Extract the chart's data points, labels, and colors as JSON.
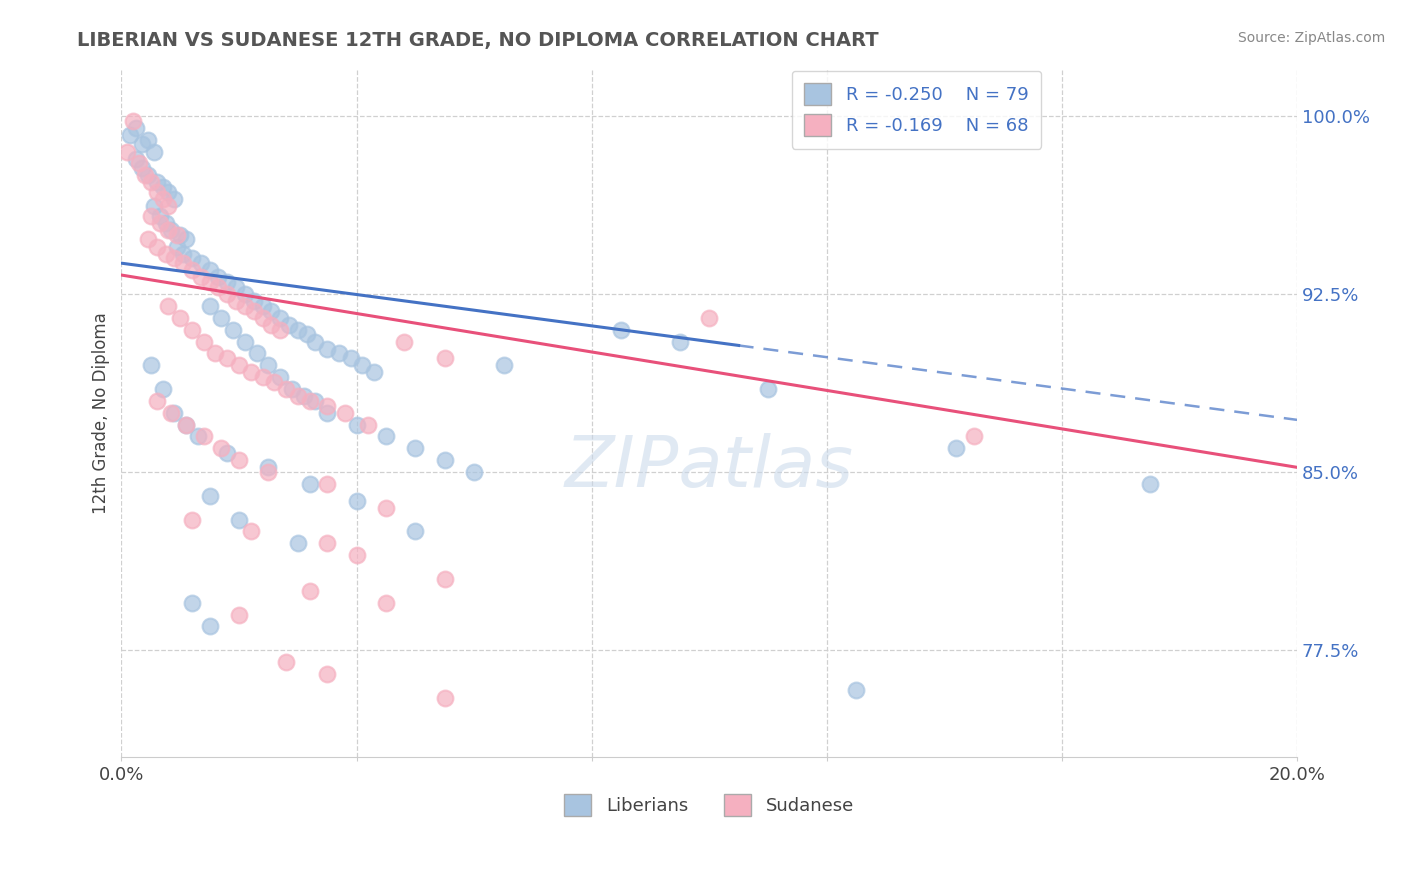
{
  "title": "LIBERIAN VS SUDANESE 12TH GRADE, NO DIPLOMA CORRELATION CHART",
  "source": "Source: ZipAtlas.com",
  "ylabel": "12th Grade, No Diploma",
  "xlim": [
    0.0,
    20.0
  ],
  "ylim": [
    73.0,
    102.0
  ],
  "yticks": [
    77.5,
    85.0,
    92.5,
    100.0
  ],
  "ytick_labels": [
    "77.5%",
    "85.0%",
    "92.5%",
    "100.0%"
  ],
  "xticks": [
    0.0,
    4.0,
    8.0,
    12.0,
    16.0,
    20.0
  ],
  "xtick_labels": [
    "0.0%",
    "",
    "",
    "",
    "",
    "20.0%"
  ],
  "liberian_color": "#a8c4e0",
  "sudanese_color": "#f5b0c0",
  "trend_blue": "#4472c4",
  "trend_pink": "#e8507a",
  "R_liberian": -0.25,
  "N_liberian": 79,
  "R_sudanese": -0.169,
  "N_sudanese": 68,
  "watermark": "ZIPatlas",
  "lib_trend": [
    0.0,
    20.0,
    93.8,
    87.2
  ],
  "sud_trend": [
    0.0,
    20.0,
    93.3,
    85.2
  ],
  "lib_solid_end": 10.5,
  "liberian_scatter": [
    [
      0.15,
      99.2
    ],
    [
      0.25,
      99.5
    ],
    [
      0.35,
      98.8
    ],
    [
      0.45,
      99.0
    ],
    [
      0.55,
      98.5
    ],
    [
      0.25,
      98.2
    ],
    [
      0.35,
      97.8
    ],
    [
      0.45,
      97.5
    ],
    [
      0.6,
      97.2
    ],
    [
      0.7,
      97.0
    ],
    [
      0.8,
      96.8
    ],
    [
      0.9,
      96.5
    ],
    [
      0.55,
      96.2
    ],
    [
      0.65,
      95.8
    ],
    [
      0.75,
      95.5
    ],
    [
      0.85,
      95.2
    ],
    [
      1.0,
      95.0
    ],
    [
      1.1,
      94.8
    ],
    [
      0.95,
      94.5
    ],
    [
      1.05,
      94.2
    ],
    [
      1.2,
      94.0
    ],
    [
      1.35,
      93.8
    ],
    [
      1.5,
      93.5
    ],
    [
      1.65,
      93.2
    ],
    [
      1.8,
      93.0
    ],
    [
      1.95,
      92.8
    ],
    [
      2.1,
      92.5
    ],
    [
      2.25,
      92.2
    ],
    [
      2.4,
      92.0
    ],
    [
      2.55,
      91.8
    ],
    [
      2.7,
      91.5
    ],
    [
      2.85,
      91.2
    ],
    [
      3.0,
      91.0
    ],
    [
      3.15,
      90.8
    ],
    [
      3.3,
      90.5
    ],
    [
      3.5,
      90.2
    ],
    [
      3.7,
      90.0
    ],
    [
      3.9,
      89.8
    ],
    [
      4.1,
      89.5
    ],
    [
      4.3,
      89.2
    ],
    [
      1.5,
      92.0
    ],
    [
      1.7,
      91.5
    ],
    [
      1.9,
      91.0
    ],
    [
      2.1,
      90.5
    ],
    [
      2.3,
      90.0
    ],
    [
      2.5,
      89.5
    ],
    [
      2.7,
      89.0
    ],
    [
      2.9,
      88.5
    ],
    [
      3.1,
      88.2
    ],
    [
      3.3,
      88.0
    ],
    [
      3.5,
      87.5
    ],
    [
      4.0,
      87.0
    ],
    [
      4.5,
      86.5
    ],
    [
      5.0,
      86.0
    ],
    [
      5.5,
      85.5
    ],
    [
      6.0,
      85.0
    ],
    [
      0.5,
      89.5
    ],
    [
      0.7,
      88.5
    ],
    [
      0.9,
      87.5
    ],
    [
      1.1,
      87.0
    ],
    [
      1.3,
      86.5
    ],
    [
      1.8,
      85.8
    ],
    [
      2.5,
      85.2
    ],
    [
      3.2,
      84.5
    ],
    [
      4.0,
      83.8
    ],
    [
      5.0,
      82.5
    ],
    [
      1.5,
      84.0
    ],
    [
      2.0,
      83.0
    ],
    [
      3.0,
      82.0
    ],
    [
      6.5,
      89.5
    ],
    [
      8.5,
      91.0
    ],
    [
      9.5,
      90.5
    ],
    [
      11.0,
      88.5
    ],
    [
      14.2,
      86.0
    ],
    [
      17.5,
      84.5
    ],
    [
      1.2,
      79.5
    ],
    [
      1.5,
      78.5
    ],
    [
      12.5,
      75.8
    ]
  ],
  "sudanese_scatter": [
    [
      0.2,
      99.8
    ],
    [
      0.1,
      98.5
    ],
    [
      0.3,
      98.0
    ],
    [
      0.4,
      97.5
    ],
    [
      0.5,
      97.2
    ],
    [
      0.6,
      96.8
    ],
    [
      0.7,
      96.5
    ],
    [
      0.8,
      96.2
    ],
    [
      0.5,
      95.8
    ],
    [
      0.65,
      95.5
    ],
    [
      0.8,
      95.2
    ],
    [
      0.95,
      95.0
    ],
    [
      0.45,
      94.8
    ],
    [
      0.6,
      94.5
    ],
    [
      0.75,
      94.2
    ],
    [
      0.9,
      94.0
    ],
    [
      1.05,
      93.8
    ],
    [
      1.2,
      93.5
    ],
    [
      1.35,
      93.2
    ],
    [
      1.5,
      93.0
    ],
    [
      1.65,
      92.8
    ],
    [
      1.8,
      92.5
    ],
    [
      1.95,
      92.2
    ],
    [
      2.1,
      92.0
    ],
    [
      2.25,
      91.8
    ],
    [
      2.4,
      91.5
    ],
    [
      2.55,
      91.2
    ],
    [
      2.7,
      91.0
    ],
    [
      0.8,
      92.0
    ],
    [
      1.0,
      91.5
    ],
    [
      1.2,
      91.0
    ],
    [
      1.4,
      90.5
    ],
    [
      1.6,
      90.0
    ],
    [
      1.8,
      89.8
    ],
    [
      2.0,
      89.5
    ],
    [
      2.2,
      89.2
    ],
    [
      2.4,
      89.0
    ],
    [
      2.6,
      88.8
    ],
    [
      2.8,
      88.5
    ],
    [
      3.0,
      88.2
    ],
    [
      3.2,
      88.0
    ],
    [
      3.5,
      87.8
    ],
    [
      3.8,
      87.5
    ],
    [
      4.2,
      87.0
    ],
    [
      4.8,
      90.5
    ],
    [
      5.5,
      89.8
    ],
    [
      0.6,
      88.0
    ],
    [
      0.85,
      87.5
    ],
    [
      1.1,
      87.0
    ],
    [
      1.4,
      86.5
    ],
    [
      1.7,
      86.0
    ],
    [
      2.0,
      85.5
    ],
    [
      2.5,
      85.0
    ],
    [
      3.5,
      84.5
    ],
    [
      4.5,
      83.5
    ],
    [
      1.2,
      83.0
    ],
    [
      2.2,
      82.5
    ],
    [
      3.5,
      82.0
    ],
    [
      4.0,
      81.5
    ],
    [
      5.5,
      80.5
    ],
    [
      3.2,
      80.0
    ],
    [
      4.5,
      79.5
    ],
    [
      2.0,
      79.0
    ],
    [
      14.5,
      86.5
    ],
    [
      10.0,
      91.5
    ],
    [
      2.8,
      77.0
    ],
    [
      3.5,
      76.5
    ],
    [
      5.5,
      75.5
    ]
  ]
}
